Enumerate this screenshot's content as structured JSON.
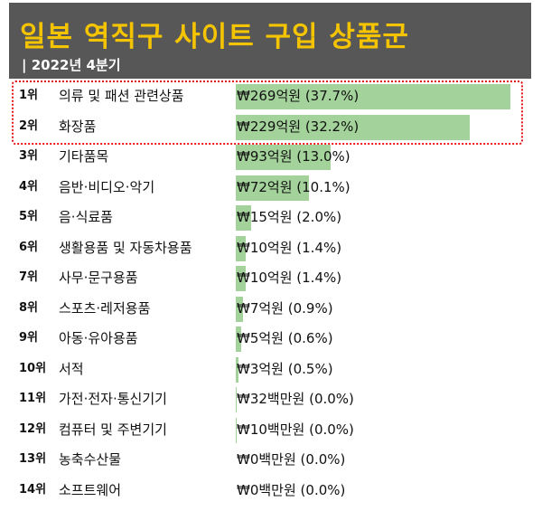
{
  "header": {
    "title": "일본 역직구 사이트 구입 상품군",
    "subtitle": "| 2022년 4분기"
  },
  "colors": {
    "header_bg": "#575757",
    "title": "#f5c400",
    "bar": "#a3d39a",
    "highlight_border": "#e8141b"
  },
  "chart_data": {
    "type": "bar",
    "orientation": "horizontal",
    "title": "일본 역직구 사이트 구입 상품군",
    "subtitle": "| 2022년 4분기",
    "unit": "억원",
    "highlighted_ranks": [
      "1위",
      "2위"
    ],
    "rows": [
      {
        "rank": "1위",
        "category": "의류 및 패션 관련상품",
        "value": 269,
        "label": "₩269억원 (37.7%)"
      },
      {
        "rank": "2위",
        "category": "화장품",
        "value": 229,
        "label": "₩229억원 (32.2%)"
      },
      {
        "rank": "3위",
        "category": "기타품목",
        "value": 93,
        "label": "₩93억원 (13.0%)"
      },
      {
        "rank": "4위",
        "category": "음반·비디오·악기",
        "value": 72,
        "label": "₩72억원 (10.1%)"
      },
      {
        "rank": "5위",
        "category": "음·식료품",
        "value": 15,
        "label": "₩15억원 (2.0%)"
      },
      {
        "rank": "6위",
        "category": "생활용품 및 자동차용품",
        "value": 10,
        "label": "₩10억원 (1.4%)"
      },
      {
        "rank": "7위",
        "category": "사무·문구용품",
        "value": 10,
        "label": "₩10억원 (1.4%)"
      },
      {
        "rank": "8위",
        "category": "스포츠·레저용품",
        "value": 7,
        "label": "₩7억원 (0.9%)"
      },
      {
        "rank": "9위",
        "category": "아동·유아용품",
        "value": 5,
        "label": "₩5억원 (0.6%)"
      },
      {
        "rank": "10위",
        "category": "서적",
        "value": 3,
        "label": "₩3억원 (0.5%)"
      },
      {
        "rank": "11위",
        "category": "가전·전자·통신기기",
        "value": 0.32,
        "label": "₩32백만원 (0.0%)"
      },
      {
        "rank": "12위",
        "category": "컴퓨터 및 주변기기",
        "value": 0.1,
        "label": "₩10백만원 (0.0%)"
      },
      {
        "rank": "13위",
        "category": "농축수산물",
        "value": 0,
        "label": "₩0백만원 (0.0%)"
      },
      {
        "rank": "14위",
        "category": "소프트웨어",
        "value": 0,
        "label": "₩0백만원 (0.0%)"
      }
    ]
  }
}
